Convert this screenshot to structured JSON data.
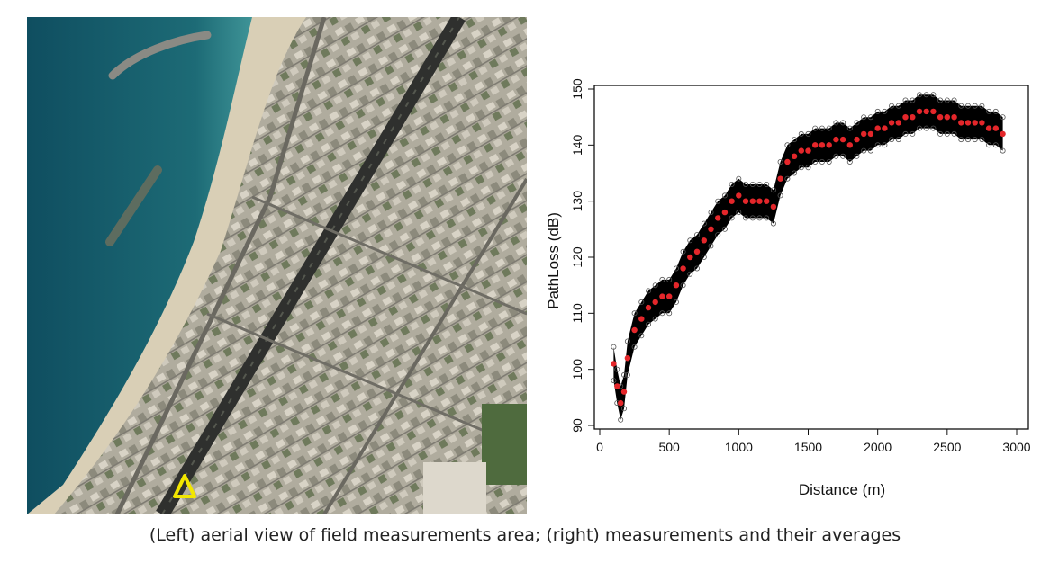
{
  "aerial_view": {
    "marker_icon": "triangle-marker-icon",
    "marker_color": "#f2e600"
  },
  "chart_data": {
    "type": "scatter",
    "title": "",
    "xlabel": "Distance (m)",
    "ylabel": "PathLoss (dB)",
    "xlim": [
      0,
      3000
    ],
    "ylim": [
      90,
      150
    ],
    "xticks": [
      0,
      500,
      1000,
      1500,
      2000,
      2500,
      3000
    ],
    "yticks": [
      90,
      100,
      110,
      120,
      130,
      140,
      150
    ],
    "grid": false,
    "legend": "none",
    "series": [
      {
        "marker": "open-circle",
        "color": "#000000",
        "band_half_width_db": 3,
        "x": [
          100,
          125,
          150,
          175,
          200,
          250,
          300,
          350,
          400,
          450,
          500,
          550,
          600,
          650,
          700,
          750,
          800,
          850,
          900,
          950,
          1000,
          1050,
          1100,
          1150,
          1200,
          1250,
          1300,
          1350,
          1400,
          1450,
          1500,
          1550,
          1600,
          1650,
          1700,
          1750,
          1800,
          1850,
          1900,
          1950,
          2000,
          2050,
          2100,
          2150,
          2200,
          2250,
          2300,
          2350,
          2400,
          2450,
          2500,
          2550,
          2600,
          2650,
          2700,
          2750,
          2800,
          2850,
          2900
        ],
        "y": [
          101,
          97,
          94,
          96,
          102,
          107,
          109,
          111,
          112,
          113,
          113,
          115,
          118,
          120,
          121,
          123,
          125,
          127,
          128,
          130,
          131,
          130,
          130,
          130,
          130,
          129,
          134,
          137,
          138,
          139,
          139,
          140,
          140,
          140,
          141,
          141,
          140,
          141,
          142,
          142,
          143,
          143,
          144,
          144,
          145,
          145,
          146,
          146,
          146,
          145,
          145,
          145,
          144,
          144,
          144,
          144,
          143,
          143,
          142
        ]
      },
      {
        "marker": "filled-circle",
        "color": "#e4262a",
        "x": [
          100,
          125,
          150,
          175,
          200,
          250,
          300,
          350,
          400,
          450,
          500,
          550,
          600,
          650,
          700,
          750,
          800,
          850,
          900,
          950,
          1000,
          1050,
          1100,
          1150,
          1200,
          1250,
          1300,
          1350,
          1400,
          1450,
          1500,
          1550,
          1600,
          1650,
          1700,
          1750,
          1800,
          1850,
          1900,
          1950,
          2000,
          2050,
          2100,
          2150,
          2200,
          2250,
          2300,
          2350,
          2400,
          2450,
          2500,
          2550,
          2600,
          2650,
          2700,
          2750,
          2800,
          2850,
          2900
        ],
        "y": [
          101,
          97,
          94,
          96,
          102,
          107,
          109,
          111,
          112,
          113,
          113,
          115,
          118,
          120,
          121,
          123,
          125,
          127,
          128,
          130,
          131,
          130,
          130,
          130,
          130,
          129,
          134,
          137,
          138,
          139,
          139,
          140,
          140,
          140,
          141,
          141,
          140,
          141,
          142,
          142,
          143,
          143,
          144,
          144,
          145,
          145,
          146,
          146,
          146,
          145,
          145,
          145,
          144,
          144,
          144,
          144,
          143,
          143,
          142
        ]
      }
    ]
  },
  "caption": "(Left) aerial view of field measurements area; (right) measurements and their averages"
}
